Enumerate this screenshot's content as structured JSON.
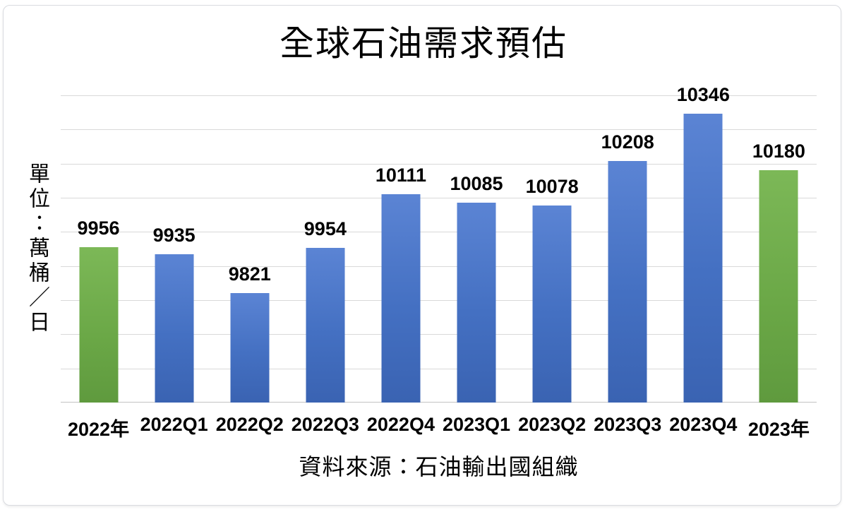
{
  "chart": {
    "title": "全球石油需求預估",
    "unit_label": "單位：萬桶／日",
    "source": "資料來源：石油輸出國組織"
  },
  "chart_data": {
    "type": "bar",
    "title": "全球石油需求預估",
    "categories": [
      "2022年",
      "2022Q1",
      "2022Q2",
      "2022Q3",
      "2022Q4",
      "2023Q1",
      "2023Q2",
      "2023Q3",
      "2023Q4",
      "2023年"
    ],
    "values": [
      9956,
      9935,
      9821,
      9954,
      10111,
      10085,
      10078,
      10208,
      10346,
      10180
    ],
    "bar_colors": [
      "green",
      "blue",
      "blue",
      "blue",
      "blue",
      "blue",
      "blue",
      "blue",
      "blue",
      "green"
    ],
    "data_labels": true,
    "xlabel": "",
    "ylabel": "單位：萬桶／日",
    "source_note": "資料來源：石油輸出國組織",
    "ylim": [
      9500,
      10400
    ],
    "gridline_step": 100,
    "grid": "horizontal",
    "legend": "none",
    "colors": {
      "green": "#70AD47",
      "blue": "#4472C4",
      "gridline": "#D9D9D9"
    }
  }
}
